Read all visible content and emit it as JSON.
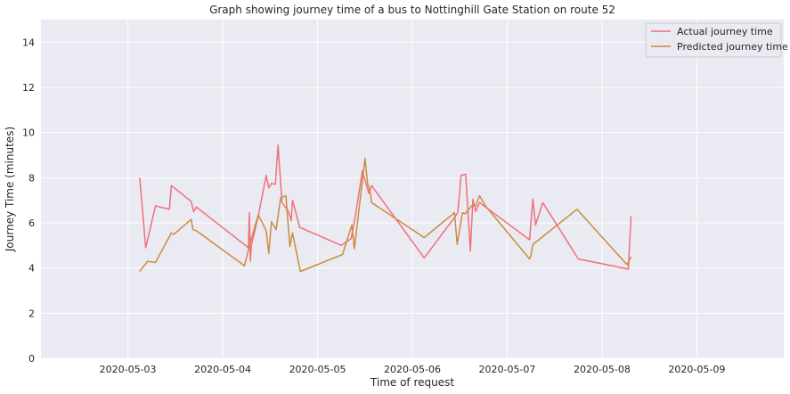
{
  "chart_data": {
    "type": "line",
    "title": "Graph showing journey time of a bus to Nottinghill Gate Station on route 52",
    "xlabel": "Time of request",
    "ylabel": "Journey Time (minutes)",
    "x_axis": {
      "kind": "date",
      "range": [
        "2020-05-02T02:00",
        "2020-05-09T22:00"
      ],
      "ticks": [
        "2020-05-03",
        "2020-05-04",
        "2020-05-05",
        "2020-05-06",
        "2020-05-07",
        "2020-05-08",
        "2020-05-09"
      ]
    },
    "ylim": [
      0,
      15
    ],
    "yticks": [
      0,
      2,
      4,
      6,
      8,
      10,
      12,
      14
    ],
    "grid": true,
    "legend_position": "top-right",
    "series": [
      {
        "name": "Actual journey time",
        "color": "#f0707c",
        "points": [
          [
            "2020-05-03T03:00",
            8.0
          ],
          [
            "2020-05-03T04:30",
            4.9
          ],
          [
            "2020-05-03T07:00",
            6.75
          ],
          [
            "2020-05-03T10:30",
            6.6
          ],
          [
            "2020-05-03T11:00",
            7.65
          ],
          [
            "2020-05-03T16:00",
            6.95
          ],
          [
            "2020-05-03T16:40",
            6.5
          ],
          [
            "2020-05-03T17:20",
            6.7
          ],
          [
            "2020-05-04T06:30",
            4.9
          ],
          [
            "2020-05-04T06:45",
            6.45
          ],
          [
            "2020-05-04T07:00",
            4.3
          ],
          [
            "2020-05-04T07:15",
            5.0
          ],
          [
            "2020-05-04T09:00",
            6.3
          ],
          [
            "2020-05-04T11:00",
            8.1
          ],
          [
            "2020-05-04T11:40",
            7.55
          ],
          [
            "2020-05-04T12:20",
            7.75
          ],
          [
            "2020-05-04T13:20",
            7.7
          ],
          [
            "2020-05-04T14:00",
            9.45
          ],
          [
            "2020-05-04T15:00",
            6.9
          ],
          [
            "2020-05-04T16:40",
            6.5
          ],
          [
            "2020-05-04T17:20",
            6.1
          ],
          [
            "2020-05-04T17:40",
            7.0
          ],
          [
            "2020-05-04T19:30",
            5.8
          ],
          [
            "2020-05-05T06:00",
            5.0
          ],
          [
            "2020-05-05T08:30",
            5.3
          ],
          [
            "2020-05-05T09:40",
            6.4
          ],
          [
            "2020-05-05T11:20",
            8.3
          ],
          [
            "2020-05-05T12:10",
            7.8
          ],
          [
            "2020-05-05T13:00",
            7.3
          ],
          [
            "2020-05-05T13:40",
            7.65
          ],
          [
            "2020-05-06T03:00",
            4.45
          ],
          [
            "2020-05-06T10:30",
            6.2
          ],
          [
            "2020-05-06T11:30",
            6.45
          ],
          [
            "2020-05-06T12:20",
            8.1
          ],
          [
            "2020-05-06T13:30",
            8.15
          ],
          [
            "2020-05-06T14:40",
            4.75
          ],
          [
            "2020-05-06T15:20",
            7.05
          ],
          [
            "2020-05-06T16:00",
            6.5
          ],
          [
            "2020-05-06T17:00",
            6.9
          ],
          [
            "2020-05-07T05:40",
            5.25
          ],
          [
            "2020-05-07T06:30",
            7.05
          ],
          [
            "2020-05-07T07:10",
            5.9
          ],
          [
            "2020-05-07T09:00",
            6.9
          ],
          [
            "2020-05-07T18:00",
            4.4
          ],
          [
            "2020-05-08T06:40",
            3.95
          ],
          [
            "2020-05-08T07:20",
            6.3
          ]
        ]
      },
      {
        "name": "Predicted journey time",
        "color": "#cc8b3c",
        "points": [
          [
            "2020-05-03T03:00",
            3.85
          ],
          [
            "2020-05-03T05:00",
            4.3
          ],
          [
            "2020-05-03T07:00",
            4.25
          ],
          [
            "2020-05-03T11:00",
            5.55
          ],
          [
            "2020-05-03T11:40",
            5.5
          ],
          [
            "2020-05-03T16:00",
            6.15
          ],
          [
            "2020-05-03T16:30",
            5.7
          ],
          [
            "2020-05-03T17:20",
            5.65
          ],
          [
            "2020-05-04T05:30",
            4.1
          ],
          [
            "2020-05-04T07:00",
            5.15
          ],
          [
            "2020-05-04T09:00",
            6.35
          ],
          [
            "2020-05-04T11:00",
            5.65
          ],
          [
            "2020-05-04T11:40",
            4.65
          ],
          [
            "2020-05-04T12:20",
            6.05
          ],
          [
            "2020-05-04T13:30",
            5.7
          ],
          [
            "2020-05-04T14:40",
            7.1
          ],
          [
            "2020-05-04T16:00",
            7.2
          ],
          [
            "2020-05-04T17:00",
            4.95
          ],
          [
            "2020-05-04T17:40",
            5.55
          ],
          [
            "2020-05-04T19:40",
            3.85
          ],
          [
            "2020-05-05T06:20",
            4.6
          ],
          [
            "2020-05-05T08:40",
            5.9
          ],
          [
            "2020-05-05T09:20",
            4.85
          ],
          [
            "2020-05-05T12:00",
            8.85
          ],
          [
            "2020-05-05T12:40",
            7.75
          ],
          [
            "2020-05-05T13:20",
            7.35
          ],
          [
            "2020-05-05T13:40",
            6.9
          ],
          [
            "2020-05-06T03:00",
            5.35
          ],
          [
            "2020-05-06T10:40",
            6.45
          ],
          [
            "2020-05-06T11:20",
            5.05
          ],
          [
            "2020-05-06T12:40",
            6.45
          ],
          [
            "2020-05-06T13:20",
            6.4
          ],
          [
            "2020-05-06T15:00",
            6.75
          ],
          [
            "2020-05-06T16:00",
            6.75
          ],
          [
            "2020-05-06T17:00",
            7.2
          ],
          [
            "2020-05-06T18:30",
            6.75
          ],
          [
            "2020-05-07T05:40",
            4.4
          ],
          [
            "2020-05-07T06:00",
            4.55
          ],
          [
            "2020-05-07T06:30",
            5.05
          ],
          [
            "2020-05-07T08:00",
            5.25
          ],
          [
            "2020-05-07T17:40",
            6.6
          ],
          [
            "2020-05-08T06:20",
            4.15
          ],
          [
            "2020-05-08T07:20",
            4.5
          ]
        ]
      }
    ]
  }
}
